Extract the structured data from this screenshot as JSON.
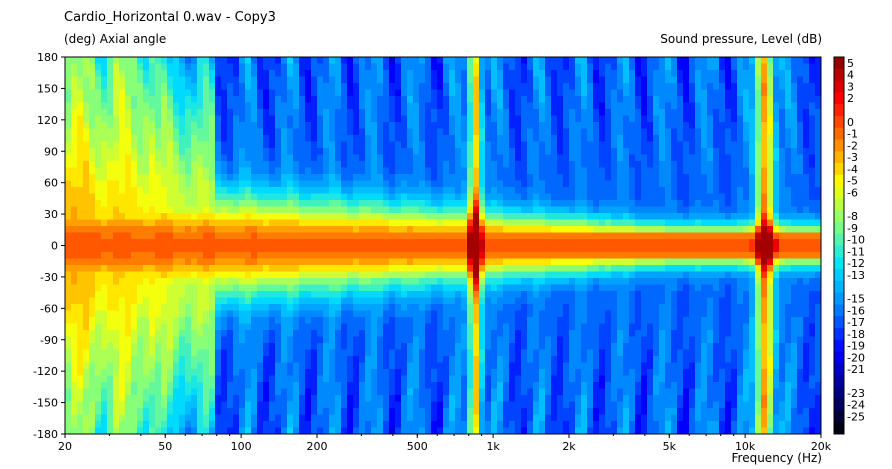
{
  "chart_data": {
    "type": "heatmap",
    "title": "Cardio_Horizontal 0.wav - Copy3",
    "ylabel": "(deg)  Axial angle",
    "xlabel": "Frequency  (Hz)",
    "colorbar_label": "Sound pressure, Level  (dB)",
    "x_scale": "log",
    "xlim": [
      20,
      20000
    ],
    "ylim": [
      -180,
      180
    ],
    "x_ticks": [
      {
        "value": 20,
        "label": "20"
      },
      {
        "value": 50,
        "label": "50"
      },
      {
        "value": 100,
        "label": "100"
      },
      {
        "value": 200,
        "label": "200"
      },
      {
        "value": 500,
        "label": "500"
      },
      {
        "value": 1000,
        "label": "1k"
      },
      {
        "value": 2000,
        "label": "2k"
      },
      {
        "value": 5000,
        "label": "5k"
      },
      {
        "value": 10000,
        "label": "10k"
      },
      {
        "value": 20000,
        "label": "20k"
      }
    ],
    "y_ticks": [
      {
        "value": 180,
        "label": "180"
      },
      {
        "value": 150,
        "label": "150"
      },
      {
        "value": 120,
        "label": "120"
      },
      {
        "value": 90,
        "label": "90"
      },
      {
        "value": 60,
        "label": "60"
      },
      {
        "value": 30,
        "label": "30"
      },
      {
        "value": 0,
        "label": "0"
      },
      {
        "value": -30,
        "label": "-30"
      },
      {
        "value": -60,
        "label": "-60"
      },
      {
        "value": -90,
        "label": "-90"
      },
      {
        "value": -120,
        "label": "-120"
      },
      {
        "value": -150,
        "label": "-150"
      },
      {
        "value": -180,
        "label": "-180"
      }
    ],
    "colorbar_range": [
      -26,
      6
    ],
    "colorbar_ticks": [
      {
        "value": 5,
        "label": "5"
      },
      {
        "value": 4,
        "label": "4"
      },
      {
        "value": 3,
        "label": "3"
      },
      {
        "value": 2,
        "label": "2"
      },
      {
        "value": 0,
        "label": "0"
      },
      {
        "value": -1,
        "label": "-1"
      },
      {
        "value": -2,
        "label": "-2"
      },
      {
        "value": -3,
        "label": "-3"
      },
      {
        "value": -4,
        "label": "-4"
      },
      {
        "value": -5,
        "label": "-5"
      },
      {
        "value": -6,
        "label": "-6"
      },
      {
        "value": -8,
        "label": "-8"
      },
      {
        "value": -9,
        "label": "-9"
      },
      {
        "value": -10,
        "label": "-10"
      },
      {
        "value": -11,
        "label": "-11"
      },
      {
        "value": -12,
        "label": "-12"
      },
      {
        "value": -13,
        "label": "-13"
      },
      {
        "value": -15,
        "label": "-15"
      },
      {
        "value": -16,
        "label": "-16"
      },
      {
        "value": -17,
        "label": "-17"
      },
      {
        "value": -18,
        "label": "-18"
      },
      {
        "value": -19,
        "label": "-19"
      },
      {
        "value": -20,
        "label": "-20"
      },
      {
        "value": -21,
        "label": "-21"
      },
      {
        "value": -23,
        "label": "-23"
      },
      {
        "value": -24,
        "label": "-24"
      },
      {
        "value": -25,
        "label": "-25"
      }
    ],
    "colormap": [
      "#000000",
      "#000080",
      "#0000ff",
      "#0080ff",
      "#00e0ff",
      "#80ff80",
      "#ffff00",
      "#ff8000",
      "#ff0000",
      "#800000"
    ],
    "features": {
      "main_lobe_db": 0,
      "rear_level_db": -12,
      "narrow_ridges_hz": [
        850,
        12000
      ]
    }
  }
}
